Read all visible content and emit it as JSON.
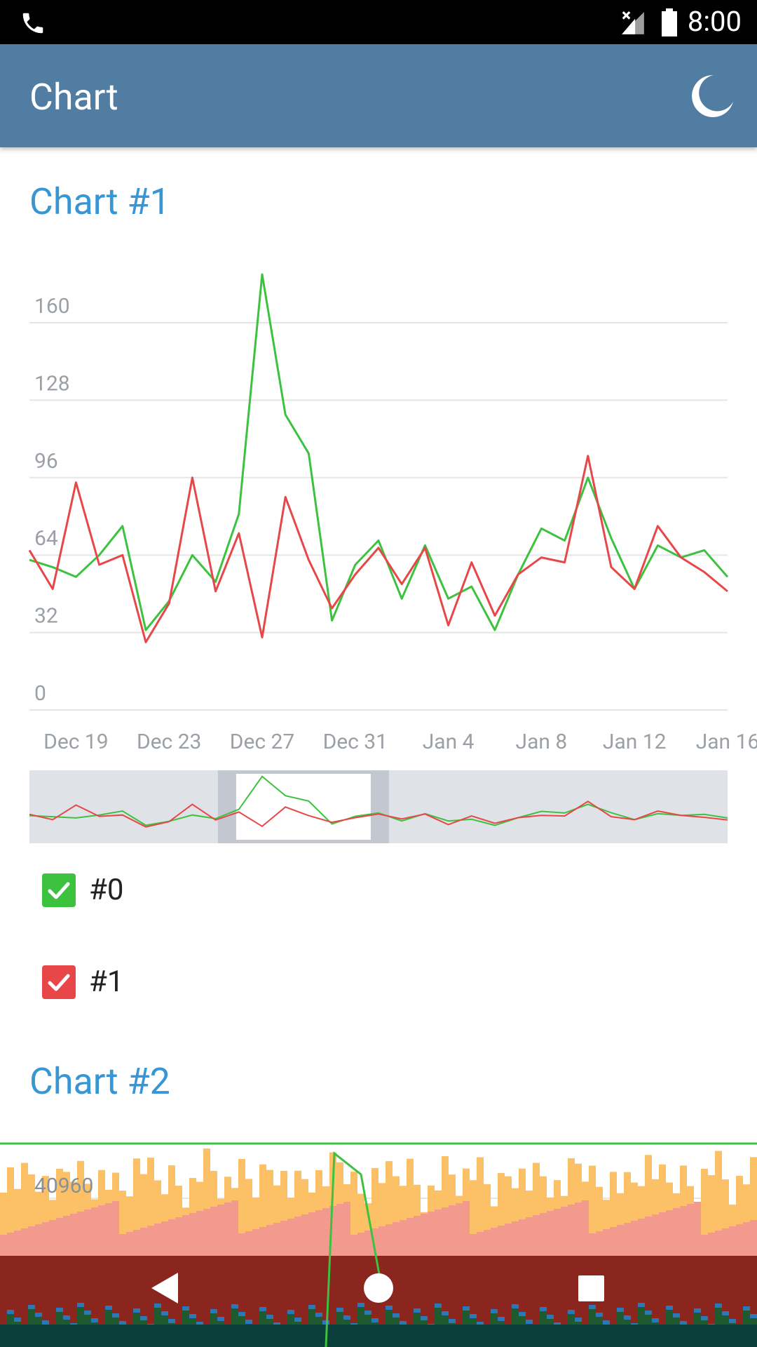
{
  "status_bar": {
    "time": "8:00",
    "icons": [
      "phone-icon",
      "signal-off-icon",
      "battery-icon"
    ]
  },
  "app_bar": {
    "title": "Chart",
    "action_icon": "moon-icon"
  },
  "colors": {
    "app_bar": "#517da2",
    "section_title": "#3896d4",
    "series_0": "#3cc23f",
    "series_1": "#e8474a"
  },
  "chart1": {
    "section_title": "Chart #1",
    "legend": [
      {
        "label": "#0",
        "color": "#3cc23f",
        "checked": true
      },
      {
        "label": "#1",
        "color": "#e8474a",
        "checked": true
      }
    ],
    "navigator": {
      "window_start": 0.27,
      "window_end": 0.515
    }
  },
  "chart2": {
    "section_title": "Chart #2"
  },
  "chart_data": [
    {
      "type": "line",
      "title": "Chart #1",
      "x": [
        "Dec 17",
        "Dec 18",
        "Dec 19",
        "Dec 20",
        "Dec 21",
        "Dec 22",
        "Dec 23",
        "Dec 24",
        "Dec 25",
        "Dec 26",
        "Dec 27",
        "Dec 28",
        "Dec 29",
        "Dec 30",
        "Dec 31",
        "Jan 1",
        "Jan 2",
        "Jan 3",
        "Jan 4",
        "Jan 5",
        "Jan 6",
        "Jan 7",
        "Jan 8",
        "Jan 9",
        "Jan 10",
        "Jan 11",
        "Jan 12",
        "Jan 13",
        "Jan 14",
        "Jan 15",
        "Jan 16"
      ],
      "x_ticks": [
        "Dec 19",
        "Dec 23",
        "Dec 27",
        "Dec 31",
        "Jan 4",
        "Jan 8",
        "Jan 12",
        "Jan 16"
      ],
      "series": [
        {
          "name": "#0",
          "color": "#3cc23f",
          "values": [
            62,
            59,
            55,
            64,
            76,
            33,
            45,
            64,
            53,
            81,
            180,
            122,
            106,
            37,
            60,
            70,
            46,
            68,
            46,
            51,
            33,
            56,
            75,
            70,
            96,
            71,
            50,
            68,
            63,
            66,
            55
          ]
        },
        {
          "name": "#1",
          "color": "#e8474a",
          "values": [
            66,
            50,
            94,
            60,
            64,
            28,
            44,
            96,
            49,
            73,
            30,
            88,
            62,
            42,
            56,
            67,
            52,
            67,
            35,
            61,
            39,
            56,
            63,
            61,
            105,
            59,
            50,
            76,
            63,
            57,
            49
          ]
        }
      ],
      "y_ticks": [
        0,
        32,
        64,
        96,
        128,
        160
      ],
      "ylim": [
        0,
        160
      ],
      "grid": true
    },
    {
      "type": "bar",
      "title": "Chart #2",
      "y_ticks": [
        40960
      ],
      "grid": true
    }
  ]
}
